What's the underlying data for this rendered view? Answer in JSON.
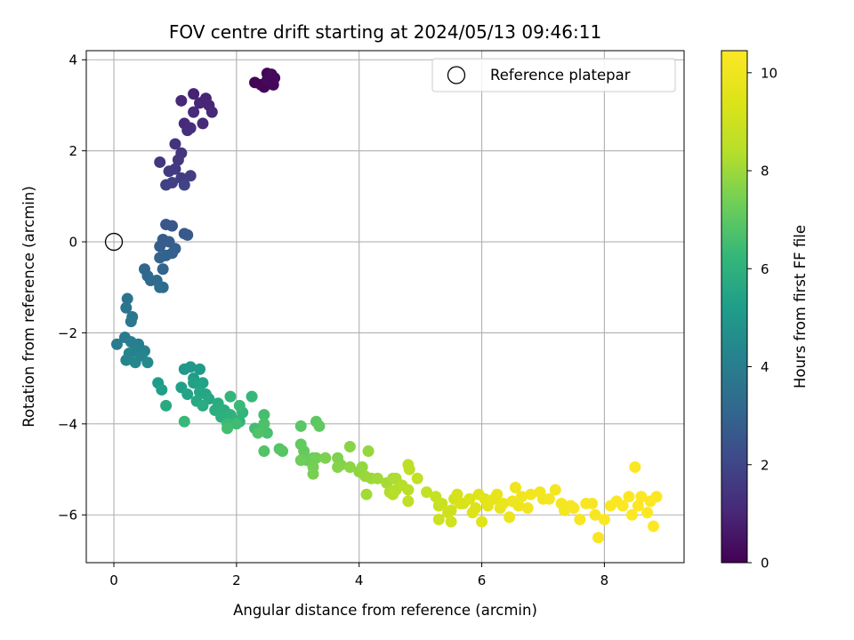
{
  "chart_data": {
    "type": "scatter",
    "title": "FOV centre drift starting at 2024/05/13 09:46:11",
    "xlabel": "Angular distance from reference (arcmin)",
    "ylabel": "Rotation from reference (arcmin)",
    "xlim": [
      -0.45,
      9.3
    ],
    "ylim": [
      -7.05,
      4.2
    ],
    "xticks": [
      0,
      2,
      4,
      6,
      8
    ],
    "yticks": [
      -6,
      -4,
      -2,
      0,
      2,
      4
    ],
    "xtick_labels": [
      "0",
      "2",
      "4",
      "6",
      "8"
    ],
    "ytick_labels": [
      "−6",
      "−4",
      "−2",
      "0",
      "2",
      "4"
    ],
    "grid": true,
    "legend": {
      "position": "top-right",
      "entries": [
        "Reference platepar"
      ]
    },
    "reference_point": {
      "x": 0,
      "y": 0,
      "label": "Reference platepar"
    },
    "colorbar": {
      "label": "Hours from first FF file",
      "colormap": "viridis",
      "range": [
        0,
        10.45
      ],
      "ticks": [
        0,
        2,
        4,
        6,
        8,
        10
      ],
      "tick_labels": [
        "0",
        "2",
        "4",
        "6",
        "8",
        "10"
      ]
    },
    "series": [
      {
        "fields": [
          "x",
          "y",
          "hours"
        ],
        "points": [
          [
            2.3,
            3.5,
            0.05
          ],
          [
            2.4,
            3.45,
            0.08
          ],
          [
            2.45,
            3.4,
            0.1
          ],
          [
            2.5,
            3.7,
            0.12
          ],
          [
            2.55,
            3.55,
            0.14
          ],
          [
            2.6,
            3.45,
            0.16
          ],
          [
            2.62,
            3.6,
            0.18
          ],
          [
            2.5,
            3.55,
            0.2
          ],
          [
            2.57,
            3.68,
            0.22
          ],
          [
            1.3,
            3.25,
            0.9
          ],
          [
            1.5,
            3.15,
            0.95
          ],
          [
            1.55,
            3.0,
            1.0
          ],
          [
            1.4,
            3.05,
            1.0
          ],
          [
            1.1,
            3.1,
            1.05
          ],
          [
            1.6,
            2.85,
            1.05
          ],
          [
            1.3,
            2.85,
            1.1
          ],
          [
            1.45,
            2.6,
            1.1
          ],
          [
            1.15,
            2.6,
            1.15
          ],
          [
            1.25,
            2.5,
            1.2
          ],
          [
            1.2,
            2.45,
            1.25
          ],
          [
            1.0,
            2.15,
            1.4
          ],
          [
            1.1,
            1.95,
            1.45
          ],
          [
            1.05,
            1.8,
            1.5
          ],
          [
            0.75,
            1.75,
            1.55
          ],
          [
            1.0,
            1.6,
            1.6
          ],
          [
            0.9,
            1.55,
            1.65
          ],
          [
            1.1,
            1.4,
            1.7
          ],
          [
            1.25,
            1.45,
            1.75
          ],
          [
            0.95,
            1.3,
            1.8
          ],
          [
            0.85,
            1.25,
            1.85
          ],
          [
            1.15,
            1.25,
            1.9
          ],
          [
            0.85,
            0.38,
            2.5
          ],
          [
            0.95,
            0.35,
            2.55
          ],
          [
            1.15,
            0.18,
            2.6
          ],
          [
            1.2,
            0.15,
            2.65
          ],
          [
            0.8,
            0.05,
            2.7
          ],
          [
            0.9,
            0.0,
            2.75
          ],
          [
            0.75,
            -0.1,
            2.8
          ],
          [
            1.0,
            -0.15,
            2.85
          ],
          [
            0.95,
            -0.25,
            2.9
          ],
          [
            0.85,
            -0.3,
            2.95
          ],
          [
            0.75,
            -0.35,
            3.0
          ],
          [
            0.8,
            -0.6,
            3.05
          ],
          [
            0.5,
            -0.6,
            3.1
          ],
          [
            0.55,
            -0.75,
            3.15
          ],
          [
            0.6,
            -0.85,
            3.2
          ],
          [
            0.7,
            -0.85,
            3.25
          ],
          [
            0.8,
            -1.0,
            3.3
          ],
          [
            0.75,
            -1.0,
            3.35
          ],
          [
            0.22,
            -1.25,
            3.6
          ],
          [
            0.2,
            -1.45,
            3.65
          ],
          [
            0.3,
            -1.65,
            3.7
          ],
          [
            0.28,
            -1.75,
            3.75
          ],
          [
            0.05,
            -2.25,
            3.9
          ],
          [
            0.18,
            -2.1,
            3.95
          ],
          [
            0.28,
            -2.2,
            4.0
          ],
          [
            0.4,
            -2.25,
            4.05
          ],
          [
            0.35,
            -2.4,
            4.1
          ],
          [
            0.5,
            -2.4,
            4.15
          ],
          [
            0.25,
            -2.45,
            4.2
          ],
          [
            0.45,
            -2.5,
            4.25
          ],
          [
            0.2,
            -2.6,
            4.3
          ],
          [
            0.35,
            -2.65,
            4.35
          ],
          [
            0.55,
            -2.65,
            4.4
          ],
          [
            1.15,
            -2.8,
            5.0
          ],
          [
            1.25,
            -2.75,
            5.05
          ],
          [
            1.4,
            -2.8,
            5.1
          ],
          [
            1.3,
            -3.0,
            5.15
          ],
          [
            0.72,
            -3.1,
            5.2
          ],
          [
            0.78,
            -3.25,
            5.25
          ],
          [
            1.1,
            -3.2,
            5.3
          ],
          [
            1.3,
            -3.1,
            5.35
          ],
          [
            1.45,
            -3.1,
            5.4
          ],
          [
            1.2,
            -3.35,
            5.45
          ],
          [
            1.4,
            -3.3,
            5.5
          ],
          [
            1.5,
            -3.35,
            5.55
          ],
          [
            1.55,
            -3.45,
            5.6
          ],
          [
            1.35,
            -3.5,
            5.65
          ],
          [
            0.85,
            -3.6,
            5.7
          ],
          [
            1.45,
            -3.6,
            5.75
          ],
          [
            1.7,
            -3.55,
            5.8
          ],
          [
            1.65,
            -3.7,
            5.85
          ],
          [
            1.8,
            -3.7,
            5.9
          ],
          [
            1.75,
            -3.85,
            5.95
          ],
          [
            1.9,
            -3.8,
            6.0
          ],
          [
            1.95,
            -3.9,
            6.05
          ],
          [
            2.05,
            -3.95,
            6.1
          ],
          [
            2.1,
            -3.75,
            6.15
          ],
          [
            1.9,
            -3.4,
            6.2
          ],
          [
            2.25,
            -3.4,
            6.25
          ],
          [
            1.15,
            -3.95,
            6.3
          ],
          [
            2.05,
            -3.6,
            6.35
          ],
          [
            1.85,
            -4.0,
            6.4
          ],
          [
            2.0,
            -4.0,
            6.45
          ],
          [
            2.3,
            -4.1,
            6.5
          ],
          [
            1.85,
            -4.1,
            6.55
          ],
          [
            2.45,
            -3.8,
            6.6
          ],
          [
            2.5,
            -4.2,
            6.65
          ],
          [
            2.45,
            -4.0,
            6.7
          ],
          [
            2.35,
            -4.2,
            6.75
          ],
          [
            2.45,
            -4.6,
            6.8
          ],
          [
            2.7,
            -4.55,
            6.85
          ],
          [
            2.75,
            -4.6,
            6.9
          ],
          [
            3.05,
            -4.05,
            6.95
          ],
          [
            3.3,
            -3.95,
            7.0
          ],
          [
            3.35,
            -4.05,
            7.05
          ],
          [
            3.05,
            -4.45,
            7.1
          ],
          [
            3.1,
            -4.6,
            7.15
          ],
          [
            3.15,
            -4.8,
            7.2
          ],
          [
            3.25,
            -4.75,
            7.25
          ],
          [
            3.05,
            -4.8,
            7.3
          ],
          [
            3.3,
            -4.75,
            7.35
          ],
          [
            3.25,
            -4.95,
            7.4
          ],
          [
            3.25,
            -5.1,
            7.45
          ],
          [
            3.45,
            -4.75,
            7.5
          ],
          [
            3.65,
            -4.75,
            7.55
          ],
          [
            3.7,
            -4.9,
            7.6
          ],
          [
            3.65,
            -4.95,
            7.65
          ],
          [
            3.85,
            -4.5,
            7.7
          ],
          [
            3.85,
            -4.95,
            7.75
          ],
          [
            4.0,
            -5.05,
            7.8
          ],
          [
            4.05,
            -4.95,
            7.85
          ],
          [
            4.15,
            -4.6,
            7.9
          ],
          [
            4.1,
            -5.15,
            7.95
          ],
          [
            4.2,
            -5.2,
            8.0
          ],
          [
            4.3,
            -5.2,
            8.05
          ],
          [
            4.12,
            -5.55,
            8.1
          ],
          [
            4.45,
            -5.3,
            8.15
          ],
          [
            4.55,
            -5.2,
            8.2
          ],
          [
            4.6,
            -5.2,
            8.25
          ],
          [
            4.5,
            -5.5,
            8.3
          ],
          [
            4.6,
            -5.45,
            8.35
          ],
          [
            4.55,
            -5.55,
            8.4
          ],
          [
            4.7,
            -5.35,
            8.45
          ],
          [
            4.8,
            -5.45,
            8.5
          ],
          [
            4.8,
            -4.9,
            8.55
          ],
          [
            4.82,
            -5.0,
            8.6
          ],
          [
            4.8,
            -5.7,
            8.65
          ],
          [
            4.95,
            -5.2,
            8.7
          ],
          [
            5.1,
            -5.5,
            8.75
          ],
          [
            5.25,
            -5.6,
            8.8
          ],
          [
            5.3,
            -5.8,
            8.85
          ],
          [
            5.35,
            -5.75,
            8.9
          ],
          [
            5.3,
            -6.1,
            8.95
          ],
          [
            5.45,
            -5.95,
            9.0
          ],
          [
            5.5,
            -5.9,
            9.05
          ],
          [
            5.5,
            -6.15,
            9.1
          ],
          [
            5.55,
            -5.65,
            9.15
          ],
          [
            5.6,
            -5.55,
            9.2
          ],
          [
            5.65,
            -5.75,
            9.25
          ],
          [
            5.7,
            -5.75,
            9.3
          ],
          [
            5.8,
            -5.65,
            9.35
          ],
          [
            5.85,
            -5.95,
            9.4
          ],
          [
            5.9,
            -5.85,
            9.45
          ],
          [
            5.95,
            -5.55,
            9.5
          ],
          [
            6.0,
            -6.15,
            9.55
          ],
          [
            6.05,
            -5.65,
            9.6
          ],
          [
            6.1,
            -5.8,
            9.65
          ],
          [
            6.2,
            -5.65,
            9.7
          ],
          [
            6.25,
            -5.55,
            9.75
          ],
          [
            6.3,
            -5.85,
            9.8
          ],
          [
            6.35,
            -5.75,
            9.85
          ],
          [
            6.45,
            -6.05,
            9.9
          ],
          [
            6.5,
            -5.7,
            9.95
          ],
          [
            6.55,
            -5.4,
            10.0
          ],
          [
            6.6,
            -5.8,
            10.0
          ],
          [
            6.65,
            -5.6,
            10.05
          ],
          [
            6.75,
            -5.85,
            10.05
          ],
          [
            6.8,
            -5.55,
            10.1
          ],
          [
            6.95,
            -5.5,
            10.1
          ],
          [
            7.0,
            -5.65,
            10.1
          ],
          [
            7.1,
            -5.65,
            10.15
          ],
          [
            7.2,
            -5.45,
            10.15
          ],
          [
            7.3,
            -5.75,
            10.2
          ],
          [
            7.35,
            -5.9,
            10.2
          ],
          [
            7.45,
            -5.8,
            10.2
          ],
          [
            7.5,
            -5.85,
            10.25
          ],
          [
            7.6,
            -6.1,
            10.25
          ],
          [
            7.7,
            -5.75,
            10.25
          ],
          [
            7.8,
            -5.75,
            10.3
          ],
          [
            7.85,
            -6.0,
            10.3
          ],
          [
            7.9,
            -6.5,
            10.3
          ],
          [
            8.0,
            -6.1,
            10.35
          ],
          [
            8.1,
            -5.8,
            10.35
          ],
          [
            8.2,
            -5.7,
            10.35
          ],
          [
            8.3,
            -5.8,
            10.4
          ],
          [
            8.4,
            -5.6,
            10.4
          ],
          [
            8.45,
            -6.0,
            10.4
          ],
          [
            8.5,
            -4.95,
            10.4
          ],
          [
            8.55,
            -5.8,
            10.42
          ],
          [
            8.6,
            -5.6,
            10.42
          ],
          [
            8.7,
            -5.95,
            10.43
          ],
          [
            8.75,
            -5.7,
            10.43
          ],
          [
            8.8,
            -6.25,
            10.44
          ],
          [
            8.85,
            -5.6,
            10.45
          ]
        ]
      }
    ]
  }
}
